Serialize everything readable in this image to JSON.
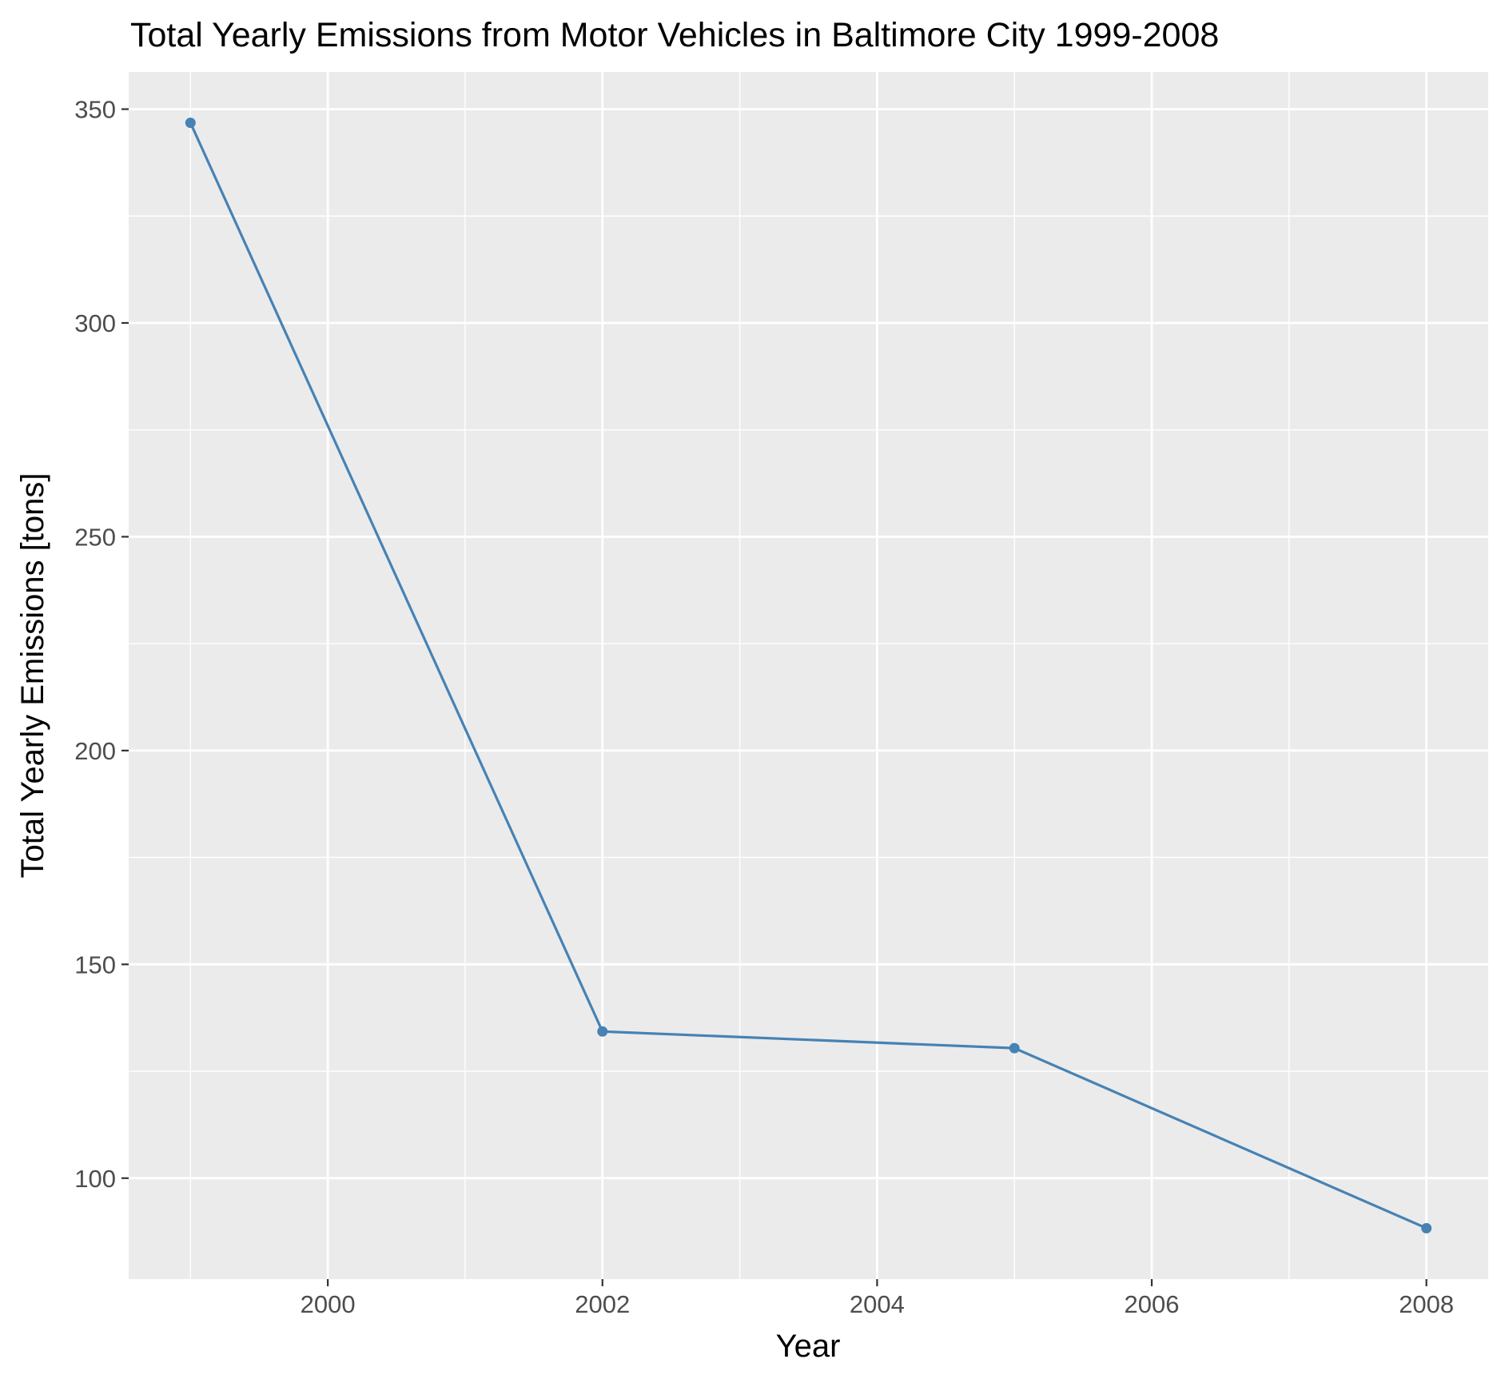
{
  "chart_data": {
    "type": "line",
    "title": "Total Yearly Emissions from Motor Vehicles in Baltimore City 1999-2008",
    "xlabel": "Year",
    "ylabel": "Total Yearly Emissions [tons]",
    "x": [
      1999,
      2002,
      2005,
      2008
    ],
    "series": [
      {
        "values": [
          346.8,
          134.3,
          130.4,
          88.3
        ]
      }
    ],
    "xlim": [
      1998.55,
      2008.45
    ],
    "ylim": [
      76.4,
      358.7
    ],
    "xticks": [
      2000,
      2002,
      2004,
      2006,
      2008
    ],
    "xtick_labels": [
      "2000",
      "2002",
      "2004",
      "2006",
      "2008"
    ],
    "yticks": [
      100,
      150,
      200,
      250,
      300,
      350
    ],
    "ytick_labels": [
      "100",
      "150",
      "200",
      "250",
      "300",
      "350"
    ],
    "grid": true,
    "legend": "none",
    "colors": {
      "series": "#4682b4",
      "panel_background": "#ebebeb",
      "grid": "#ffffff",
      "tick_text": "#4d4d4d",
      "tick_mark": "#333333"
    }
  }
}
